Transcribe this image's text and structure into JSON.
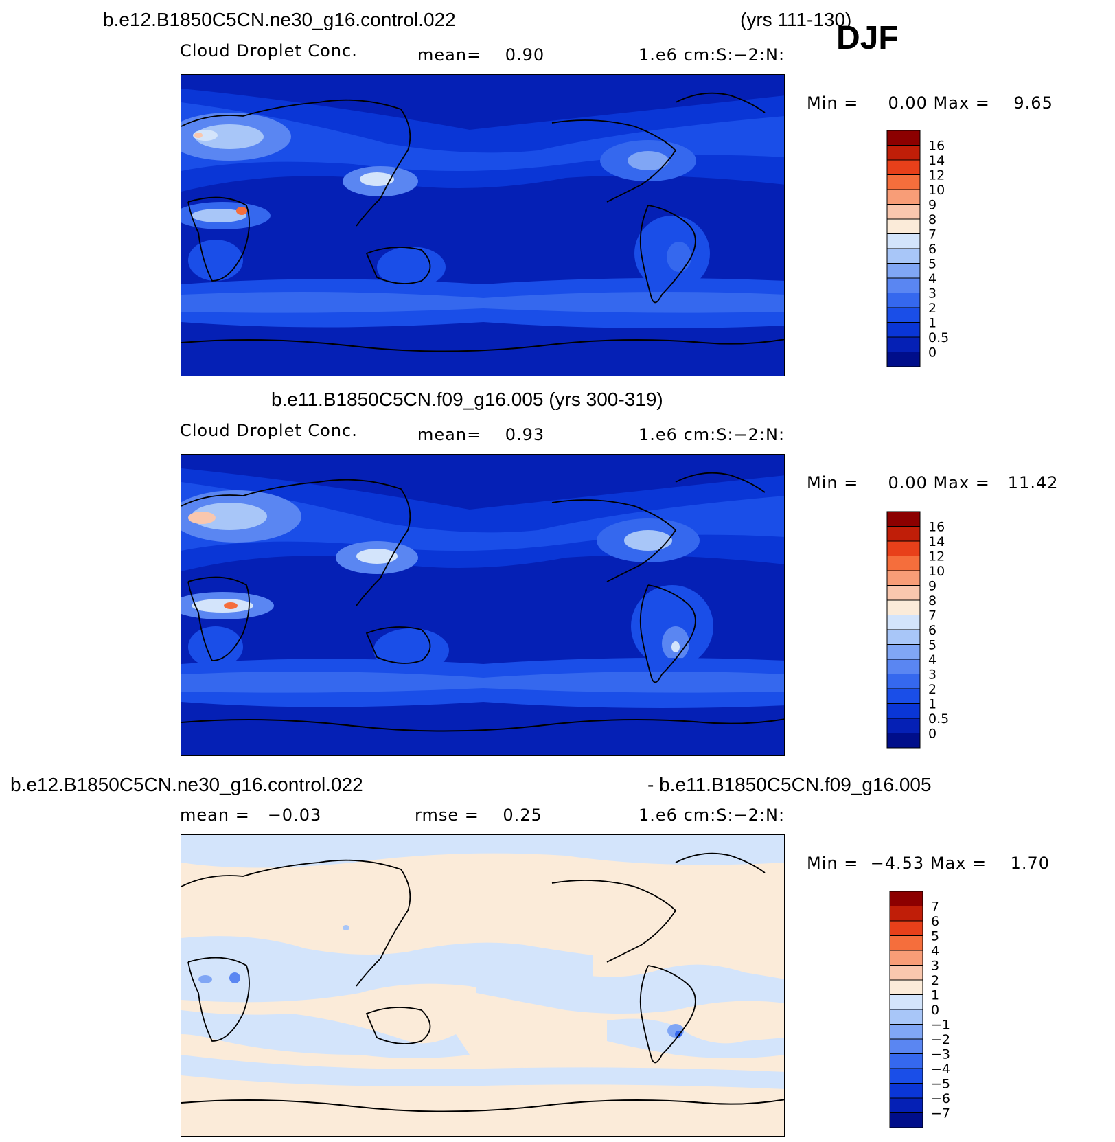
{
  "season": "DJF",
  "panels": [
    {
      "title_left": "b.e12.B1850C5CN.ne30_g16.control.022",
      "title_right": "(yrs 111-130)",
      "variable": "Cloud Droplet Conc.",
      "stat": "mean=    0.90",
      "units": "1.e6 cm:S:−2:N:",
      "minmax": "Min =     0.00 Max =    9.65",
      "colorbar": {
        "colors": [
          "#000e8a",
          "#0520b5",
          "#0a36d6",
          "#1a4ee8",
          "#3568ee",
          "#5a86f2",
          "#80a6f5",
          "#a8c6f8",
          "#d3e4fb",
          "#fbebd9",
          "#f9c7ae",
          "#f89d77",
          "#f56e3c",
          "#e8401a",
          "#c01e08",
          "#8c0000"
        ],
        "labels": [
          "0",
          "0.5",
          "1",
          "2",
          "3",
          "4",
          "5",
          "6",
          "7",
          "8",
          "9",
          "10",
          "12",
          "14",
          "16"
        ]
      }
    },
    {
      "title_left": "b.e11.B1850C5CN.f09_g16.005 (yrs 300-319)",
      "variable": "Cloud Droplet Conc.",
      "stat": "mean=    0.93",
      "units": "1.e6 cm:S:−2:N:",
      "minmax": "Min =     0.00 Max =   11.42",
      "colorbar": {
        "colors": [
          "#000e8a",
          "#0520b5",
          "#0a36d6",
          "#1a4ee8",
          "#3568ee",
          "#5a86f2",
          "#80a6f5",
          "#a8c6f8",
          "#d3e4fb",
          "#fbebd9",
          "#f9c7ae",
          "#f89d77",
          "#f56e3c",
          "#e8401a",
          "#c01e08",
          "#8c0000"
        ],
        "labels": [
          "0",
          "0.5",
          "1",
          "2",
          "3",
          "4",
          "5",
          "6",
          "7",
          "8",
          "9",
          "10",
          "12",
          "14",
          "16"
        ]
      }
    },
    {
      "title_left": "b.e12.B1850C5CN.ne30_g16.control.022",
      "title_right": "- b.e11.B1850C5CN.f09_g16.005",
      "stat_mean": "mean =   −0.03",
      "stat_rmse": "rmse =    0.25",
      "units": "1.e6 cm:S:−2:N:",
      "minmax": "Min =  −4.53 Max =    1.70",
      "colorbar": {
        "colors": [
          "#000e8a",
          "#0520b5",
          "#0a36d6",
          "#1a4ee8",
          "#3568ee",
          "#5a86f2",
          "#80a6f5",
          "#a8c6f8",
          "#d3e4fb",
          "#fbebd9",
          "#f9c7ae",
          "#f89d77",
          "#f56e3c",
          "#e8401a",
          "#c01e08",
          "#8c0000"
        ],
        "labels": [
          "−7",
          "−6",
          "−5",
          "−4",
          "−3",
          "−2",
          "−1",
          "0",
          "1",
          "2",
          "3",
          "4",
          "5",
          "6",
          "7"
        ]
      }
    }
  ]
}
